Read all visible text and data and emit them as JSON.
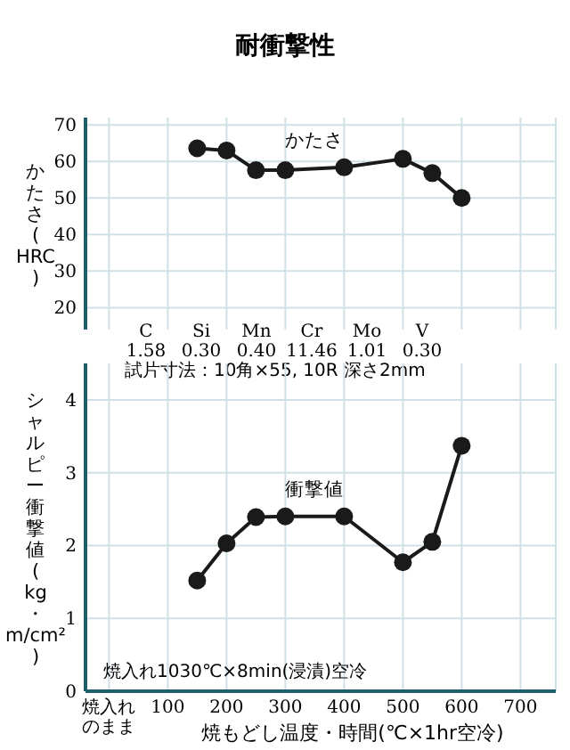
{
  "chart_data": [
    {
      "type": "line",
      "title": "耐衝撃性",
      "ylabel": "かたさ(HRC)",
      "x": [
        150,
        200,
        250,
        300,
        400,
        500,
        550,
        600
      ],
      "series": [
        {
          "color": "#1a1a1a",
          "values": [
            63.6,
            63,
            57.6,
            57.6,
            58.4,
            60.7,
            56.8,
            50
          ]
        }
      ],
      "xlim": [
        -40,
        760
      ],
      "xticks": [
        {
          "value": 0,
          "label": null
        },
        100,
        200,
        300,
        400,
        500,
        600,
        700
      ],
      "ylim": [
        14,
        72
      ],
      "yticks": [
        20,
        30,
        40,
        50,
        60,
        70
      ],
      "tick_labels": "y",
      "grid": true,
      "marker": "circle",
      "line_style": "solid",
      "annotations": [
        "かたさ",
        "C Si Mn Cr Mo V",
        "1.58 0.30 0.40 11.46 1.01 0.30",
        "試片寸法：10角×55, 10R 深さ2mm"
      ]
    },
    {
      "type": "line",
      "ylabel": "シャルピー衝撃値(kg・m/cm²)",
      "xlabel": "焼もどし温度・時間(℃×1hr空冷)",
      "x": [
        150,
        200,
        250,
        300,
        400,
        500,
        550,
        600
      ],
      "series": [
        {
          "color": "#1a1a1a",
          "values": [
            1.52,
            2.03,
            2.39,
            2.4,
            2.4,
            1.77,
            2.05,
            3.37
          ]
        }
      ],
      "xlim": [
        -40,
        760
      ],
      "xticks": [
        {
          "value": 0,
          "label": "焼入れのまま"
        },
        100,
        200,
        300,
        400,
        500,
        600,
        700
      ],
      "ylim": [
        0,
        4.5
      ],
      "yticks": [
        0,
        1,
        2,
        3,
        4
      ],
      "grid": true,
      "marker": "circle",
      "line_style": "solid",
      "annotations": [
        "衝撃値",
        "焼入れ1030℃×8min(浸漬)空冷"
      ]
    }
  ]
}
